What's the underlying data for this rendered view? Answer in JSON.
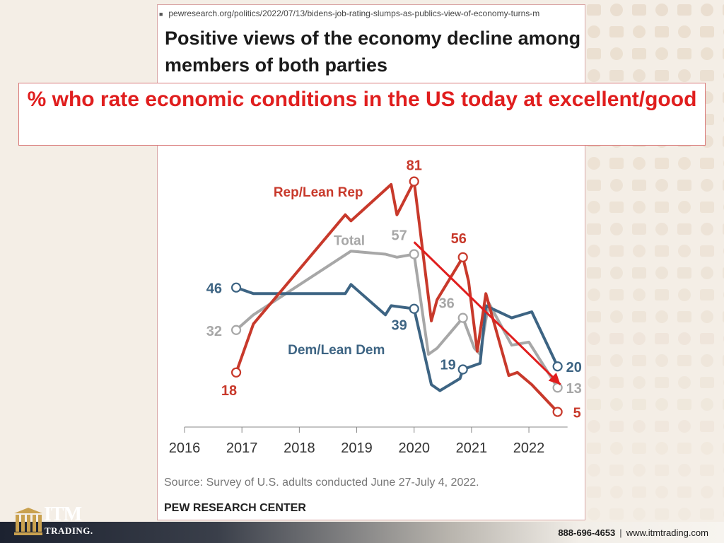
{
  "browser": {
    "url": "pewresearch.org/politics/2022/07/13/bidens-job-rating-slumps-as-publics-view-of-economy-turns-m"
  },
  "chart_title": "Positive views of the economy decline among members of both parties",
  "subtitle": "% who rate economic conditions in the US today at excellent/good",
  "source": "Source: Survey of U.S. adults conducted June 27-July 4, 2022.",
  "brand": "PEW RESEARCH CENTER",
  "footer": {
    "phone": "888-696-4653",
    "separator": "|",
    "website": "www.itmtrading.com"
  },
  "logo": {
    "name": "ITM",
    "sub": "TRADING."
  },
  "chart_data": {
    "type": "line",
    "xlim": [
      2016,
      2022.8
    ],
    "ylim": [
      0,
      90
    ],
    "x_ticks": [
      "2016",
      "2017",
      "2018",
      "2019",
      "2020",
      "2021",
      "2022"
    ],
    "colors": {
      "rep": "#c8392b",
      "total": "#a7a7a7",
      "dem": "#3d6483",
      "arrow": "#e01e1e"
    },
    "series": [
      {
        "name": "Rep/Lean Rep",
        "key": "rep",
        "points": [
          [
            2016.9,
            18
          ],
          [
            2017.2,
            34
          ],
          [
            2018.8,
            70
          ],
          [
            2018.9,
            68
          ],
          [
            2019.6,
            80
          ],
          [
            2019.7,
            70
          ],
          [
            2020.0,
            81
          ],
          [
            2020.3,
            35
          ],
          [
            2020.4,
            42
          ],
          [
            2020.85,
            56
          ],
          [
            2020.95,
            48
          ],
          [
            2021.1,
            25
          ],
          [
            2021.25,
            44
          ],
          [
            2021.65,
            17
          ],
          [
            2021.8,
            18
          ],
          [
            2022.05,
            14
          ],
          [
            2022.5,
            5
          ]
        ],
        "labels": [
          {
            "text": "18",
            "at": [
              2016.9,
              18
            ]
          },
          {
            "text": "81",
            "at": [
              2020.0,
              81
            ]
          },
          {
            "text": "56",
            "at": [
              2020.85,
              56
            ]
          },
          {
            "text": "5",
            "at": [
              2022.5,
              5
            ]
          }
        ]
      },
      {
        "name": "Total",
        "key": "total",
        "points": [
          [
            2016.9,
            32
          ],
          [
            2017.2,
            37
          ],
          [
            2018.9,
            58
          ],
          [
            2019.5,
            57
          ],
          [
            2019.7,
            56
          ],
          [
            2020.0,
            57
          ],
          [
            2020.25,
            24
          ],
          [
            2020.4,
            26
          ],
          [
            2020.85,
            36
          ],
          [
            2021.05,
            26
          ],
          [
            2021.15,
            24
          ],
          [
            2021.3,
            41
          ],
          [
            2021.7,
            27
          ],
          [
            2022.0,
            28
          ],
          [
            2022.5,
            13
          ]
        ],
        "labels": [
          {
            "text": "32",
            "at": [
              2016.9,
              32
            ]
          },
          {
            "text": "57",
            "at": [
              2020.0,
              57
            ]
          },
          {
            "text": "36",
            "at": [
              2020.85,
              36
            ]
          },
          {
            "text": "13",
            "at": [
              2022.5,
              13
            ]
          }
        ]
      },
      {
        "name": "Dem/Lean Dem",
        "key": "dem",
        "points": [
          [
            2016.9,
            46
          ],
          [
            2017.2,
            44
          ],
          [
            2018.8,
            44
          ],
          [
            2018.9,
            47
          ],
          [
            2019.5,
            37
          ],
          [
            2019.6,
            40
          ],
          [
            2020.0,
            39
          ],
          [
            2020.3,
            14
          ],
          [
            2020.45,
            12
          ],
          [
            2020.8,
            16
          ],
          [
            2020.85,
            19
          ],
          [
            2021.15,
            21
          ],
          [
            2021.25,
            40
          ],
          [
            2021.7,
            36
          ],
          [
            2022.05,
            38
          ],
          [
            2022.5,
            20
          ]
        ],
        "labels": [
          {
            "text": "46",
            "at": [
              2016.9,
              46
            ]
          },
          {
            "text": "39",
            "at": [
              2020.0,
              39
            ]
          },
          {
            "text": "19",
            "at": [
              2020.85,
              19
            ]
          },
          {
            "text": "20",
            "at": [
              2022.5,
              20
            ]
          }
        ]
      }
    ],
    "series_labels": [
      {
        "text": "Rep/Lean Rep",
        "key": "rep",
        "at": [
          2017.55,
          76
        ]
      },
      {
        "text": "Total",
        "key": "total",
        "at": [
          2018.6,
          60
        ]
      },
      {
        "text": "Dem/Lean Dem",
        "key": "dem",
        "at": [
          2017.8,
          24
        ]
      }
    ],
    "arrow": {
      "from": [
        2020.0,
        61
      ],
      "to": [
        2022.55,
        14
      ]
    },
    "end_markers": [
      {
        "key": "rep",
        "at": [
          2016.9,
          18
        ]
      },
      {
        "key": "rep",
        "at": [
          2020.0,
          81
        ]
      },
      {
        "key": "rep",
        "at": [
          2020.85,
          56
        ]
      },
      {
        "key": "rep",
        "at": [
          2022.5,
          5
        ]
      },
      {
        "key": "total",
        "at": [
          2016.9,
          32
        ]
      },
      {
        "key": "total",
        "at": [
          2020.0,
          57
        ]
      },
      {
        "key": "total",
        "at": [
          2020.85,
          36
        ]
      },
      {
        "key": "total",
        "at": [
          2022.5,
          13
        ]
      },
      {
        "key": "dem",
        "at": [
          2016.9,
          46
        ]
      },
      {
        "key": "dem",
        "at": [
          2020.0,
          39
        ]
      },
      {
        "key": "dem",
        "at": [
          2020.85,
          19
        ]
      },
      {
        "key": "dem",
        "at": [
          2022.5,
          20
        ]
      }
    ]
  }
}
